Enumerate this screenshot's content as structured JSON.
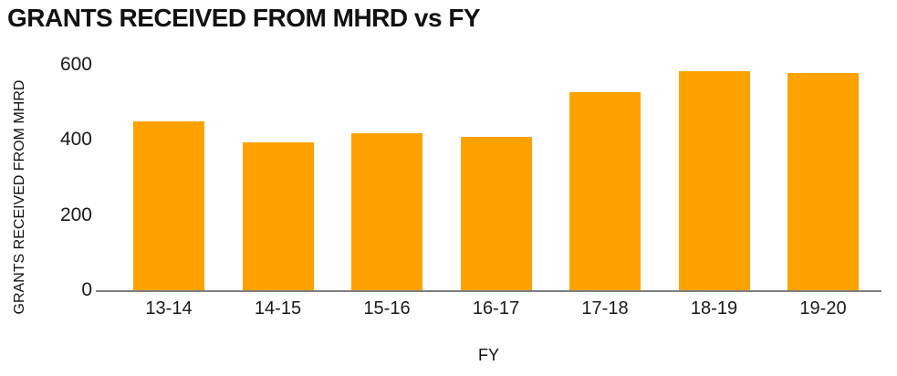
{
  "header": {
    "title": "GRANTS RECEIVED FROM MHRD vs FY"
  },
  "colors": {
    "bar": "#FFA200",
    "axis_line": "#7E7E7E",
    "text": "#1A1A1A"
  },
  "chart_data": {
    "type": "bar",
    "title": "GRANTS RECEIVED FROM MHRD vs FY",
    "xlabel": "FY",
    "ylabel": "GRANTS RECEIVED FROM MHRD",
    "categories": [
      "13-14",
      "14-15",
      "15-16",
      "16-17",
      "17-18",
      "18-19",
      "19-20"
    ],
    "values": [
      450,
      394,
      418,
      408,
      528,
      583,
      577
    ],
    "ylim": [
      0,
      600
    ],
    "yticks": [
      0,
      200,
      400,
      600
    ],
    "grid": false,
    "legend": false
  }
}
